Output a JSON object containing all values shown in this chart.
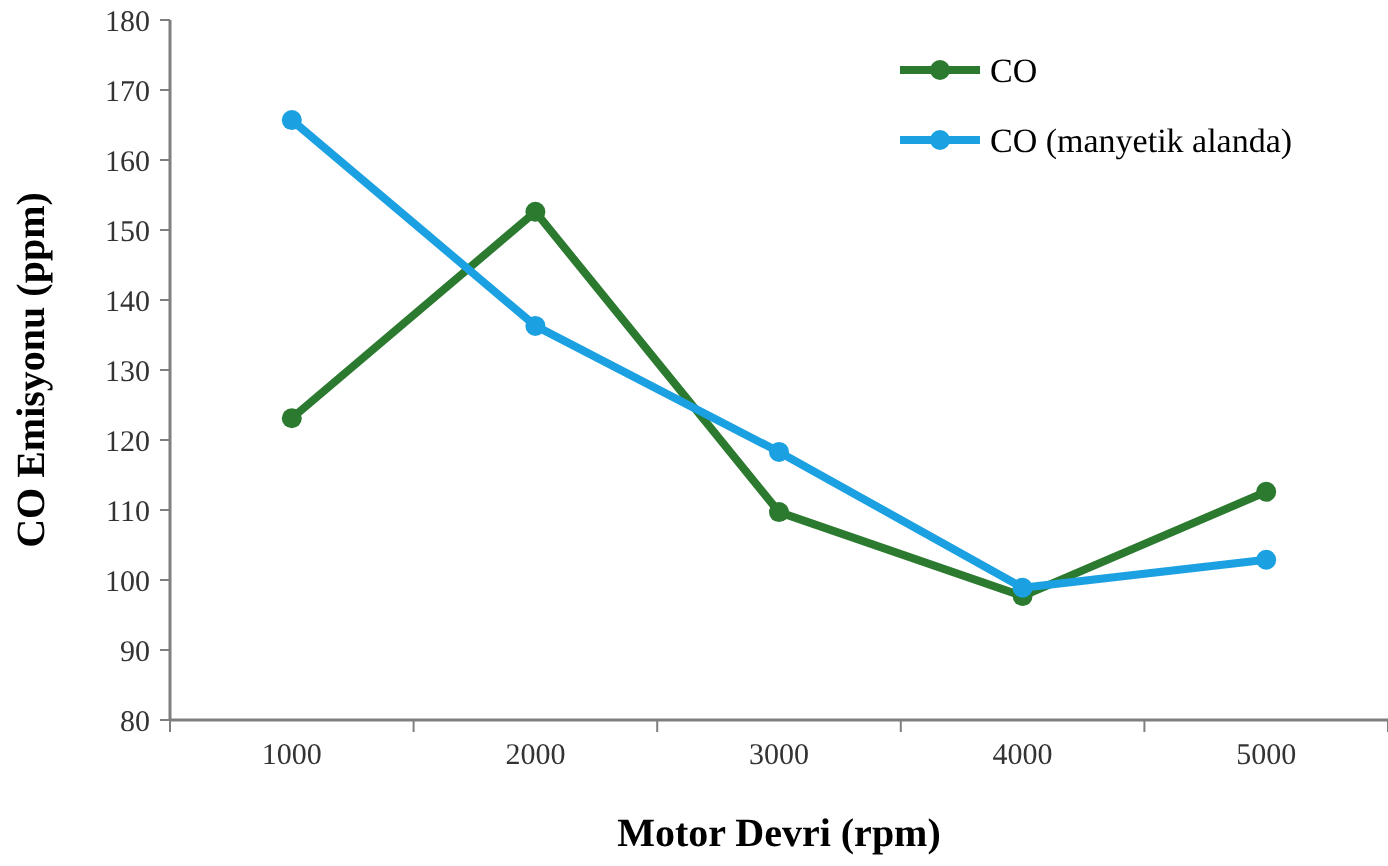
{
  "chart_data": {
    "type": "line",
    "xlabel": "Motor Devri (rpm)",
    "ylabel": "CO Emisyonu (ppm)",
    "categories": [
      "1000",
      "2000",
      "3000",
      "4000",
      "5000"
    ],
    "ylim": [
      80,
      180
    ],
    "yticks": [
      80,
      90,
      100,
      110,
      120,
      130,
      140,
      150,
      160,
      170,
      180
    ],
    "grid": false,
    "legend": "top right",
    "marker": "circle",
    "line_style": "solid",
    "series": [
      {
        "name": "CO",
        "color": "#2b7a2f",
        "values": [
          123.1,
          152.6,
          109.7,
          97.7,
          112.6
        ]
      },
      {
        "name": "CO (manyetik alanda)",
        "color": "#1ba1e2",
        "values": [
          165.7,
          136.3,
          118.3,
          98.9,
          102.9
        ]
      }
    ]
  }
}
